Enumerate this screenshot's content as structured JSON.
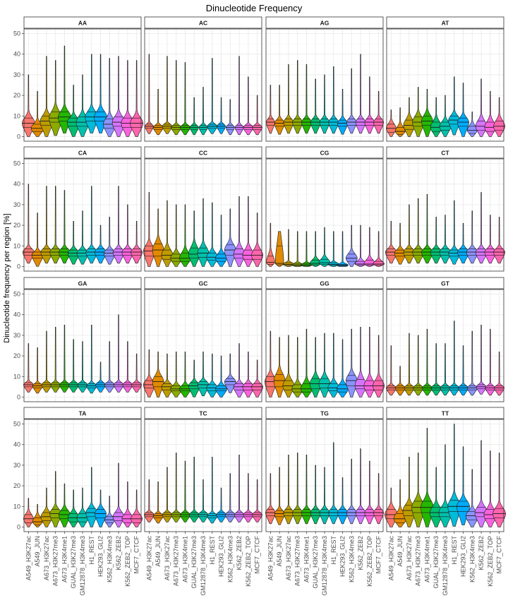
{
  "chart_data": {
    "type": "violin",
    "title": "Dinucleotide Frequency",
    "ylabel": "Dinucleotide frequency per region [%]",
    "xlabel": "",
    "ylim": [
      0,
      50
    ],
    "yticks": [
      0,
      10,
      20,
      30,
      40,
      50
    ],
    "grid": true,
    "legend": "none",
    "categories": [
      "A549_H3K27ac",
      "A549_JUN",
      "A673_H3K27ac",
      "A673_H3K27me3",
      "A673_H3K4me1",
      "GUAL_H3K27me3",
      "GM12878_H3K4me3",
      "H1_REST",
      "HEK293_GLI2",
      "K562_H3K4me3",
      "K562_ZEB2",
      "K562_ZEB2_TOP",
      "MCF7_CTCF"
    ],
    "colors": [
      "#F8766D",
      "#E18A00",
      "#BE9C00",
      "#8CAB00",
      "#24B700",
      "#00BE70",
      "#00C1AB",
      "#00BBDA",
      "#00ACFC",
      "#8B93FF",
      "#D575FE",
      "#F962DD",
      "#FF65AC"
    ],
    "panels": [
      {
        "label": "AA",
        "medians": [
          6.5,
          4,
          7.5,
          9,
          9.5,
          7,
          7,
          9.5,
          9.5,
          6,
          7,
          6.5,
          6.5
        ],
        "q1": [
          4.5,
          2.5,
          5.5,
          7,
          7.5,
          5,
          5,
          7.5,
          7.5,
          4,
          5,
          4.5,
          4.5
        ],
        "q3": [
          9,
          6,
          10,
          12,
          12,
          9,
          9.5,
          12,
          12,
          8.5,
          9.5,
          9,
          9
        ],
        "max": [
          30,
          22,
          39,
          37,
          44,
          25,
          30,
          40,
          40,
          38,
          39,
          37,
          37
        ],
        "halfwidth": [
          9,
          9,
          9,
          9,
          9,
          9,
          9,
          9,
          9,
          9,
          9,
          9,
          9
        ]
      },
      {
        "label": "AC",
        "medians": [
          5,
          4.5,
          5,
          4.5,
          4.5,
          4.5,
          4.5,
          5,
          5,
          4.5,
          4.5,
          4.5,
          4.5
        ],
        "q1": [
          4,
          3.5,
          4,
          3.5,
          3.5,
          3.5,
          3.5,
          4,
          4,
          3.5,
          3.5,
          3.5,
          3.5
        ],
        "q3": [
          6,
          5.5,
          6,
          5.5,
          5.5,
          5.5,
          5.5,
          6,
          6,
          5.5,
          5.5,
          5.5,
          5.5
        ],
        "max": [
          40,
          23,
          39,
          37,
          36,
          19,
          24,
          38,
          19,
          18,
          39,
          29,
          20
        ],
        "halfwidth": [
          6,
          7,
          7,
          7,
          7,
          6,
          6,
          7,
          6,
          6,
          6,
          7,
          7
        ]
      },
      {
        "label": "AG",
        "medians": [
          7,
          6.5,
          7,
          7,
          7,
          7,
          7,
          7,
          6.5,
          7,
          7,
          7,
          7
        ],
        "q1": [
          5.5,
          5,
          5.5,
          5.5,
          5.5,
          5.5,
          5.5,
          5.5,
          5,
          5.5,
          5.5,
          5.5,
          5.5
        ],
        "q3": [
          8.5,
          8,
          8.5,
          8.5,
          8.5,
          8.5,
          8.5,
          8.5,
          8,
          8.5,
          8.5,
          8.5,
          8.5
        ],
        "max": [
          25,
          25,
          35,
          37,
          35,
          28,
          30,
          34,
          23,
          33,
          40,
          29,
          22
        ],
        "halfwidth": [
          6,
          7,
          7,
          7,
          7,
          7,
          7,
          7,
          7,
          7,
          7,
          7,
          7
        ]
      },
      {
        "label": "AT",
        "medians": [
          4,
          2.5,
          5.5,
          7,
          7.5,
          4.5,
          5,
          8,
          7,
          3,
          5,
          4.5,
          5
        ],
        "q1": [
          2,
          1,
          3.5,
          5,
          5.5,
          2.5,
          3,
          6,
          5,
          1.5,
          3,
          2.5,
          3
        ],
        "q3": [
          6,
          4.5,
          8,
          9.5,
          10,
          7,
          7,
          10,
          9,
          5,
          7.5,
          7,
          7.5
        ],
        "max": [
          13,
          14,
          19,
          24,
          23,
          19,
          20,
          29,
          26,
          12,
          28,
          22,
          19
        ],
        "halfwidth": [
          7,
          7,
          8,
          8,
          8,
          8,
          8,
          8,
          8,
          7,
          8,
          8,
          8
        ]
      },
      {
        "label": "CA",
        "medians": [
          7,
          5.5,
          7,
          7,
          7,
          6.5,
          6.5,
          7,
          7,
          6.5,
          7,
          7,
          7
        ],
        "q1": [
          5.5,
          4,
          5.5,
          5.5,
          5.5,
          5,
          5,
          5.5,
          5.5,
          5,
          5.5,
          5.5,
          5.5
        ],
        "q3": [
          8.5,
          7,
          8.5,
          8.5,
          8.5,
          8,
          8,
          8.5,
          8.5,
          8,
          8.5,
          8.5,
          8.5
        ],
        "max": [
          40,
          26,
          39,
          39,
          37,
          22,
          27,
          39,
          20,
          24,
          39,
          30,
          22
        ],
        "halfwidth": [
          8,
          8,
          8,
          8,
          8,
          8,
          8,
          8,
          8,
          8,
          8,
          8,
          8
        ]
      },
      {
        "label": "CC",
        "medians": [
          7.5,
          8,
          5.5,
          4,
          4,
          6,
          6.5,
          4.5,
          4,
          8,
          6,
          5.5,
          5.5
        ],
        "q1": [
          5,
          5,
          3.5,
          2.5,
          2.5,
          4,
          4.5,
          3,
          2.5,
          5.5,
          4,
          3.5,
          3.5
        ],
        "q3": [
          10,
          11,
          8,
          6,
          6.5,
          9,
          9,
          6.5,
          6,
          10.5,
          8.5,
          8,
          8
        ],
        "max": [
          36,
          28,
          32,
          30,
          30,
          27,
          33,
          31,
          25,
          28,
          34,
          34,
          26
        ],
        "halfwidth": [
          8,
          8,
          8,
          8,
          8,
          8,
          8,
          8,
          8,
          8,
          8,
          8,
          8
        ]
      },
      {
        "label": "CG",
        "medians": [
          2,
          1.5,
          1,
          0.8,
          0.8,
          1.5,
          1.8,
          1,
          0.6,
          4,
          1.2,
          1.2,
          1.2
        ],
        "q1": [
          1,
          0.8,
          0.5,
          0.4,
          0.4,
          0.8,
          0.9,
          0.5,
          0.3,
          2.5,
          0.6,
          0.6,
          0.6
        ],
        "q3": [
          5,
          10,
          1.8,
          1.5,
          1.5,
          3,
          3.5,
          1.8,
          1,
          6,
          2.5,
          3,
          2.5
        ],
        "max": [
          21,
          17,
          18,
          17,
          17,
          17,
          19,
          17,
          17,
          20,
          20,
          19,
          17
        ],
        "halfwidth": [
          6,
          6,
          8,
          8,
          8,
          8,
          8,
          8,
          8,
          8,
          8,
          8,
          8
        ]
      },
      {
        "label": "CT",
        "medians": [
          7,
          6.5,
          7,
          7,
          7,
          7,
          7,
          6.5,
          7,
          7,
          7,
          7,
          7
        ],
        "q1": [
          5.5,
          5,
          5.5,
          5.5,
          5.5,
          5.5,
          5.5,
          5,
          5.5,
          5.5,
          5.5,
          5.5,
          5.5
        ],
        "q3": [
          8.5,
          8,
          8.5,
          8.5,
          8.5,
          8.5,
          8.5,
          8,
          8.5,
          8.5,
          8.5,
          8.5,
          8.5
        ],
        "max": [
          22,
          21,
          30,
          33,
          35,
          24,
          25,
          32,
          21,
          27,
          36,
          25,
          24
        ],
        "halfwidth": [
          8,
          8,
          8,
          8,
          8,
          8,
          8,
          8,
          8,
          8,
          8,
          8,
          8
        ]
      },
      {
        "label": "GA",
        "medians": [
          6,
          5.5,
          6,
          6,
          6,
          6,
          6,
          5.5,
          6,
          6,
          6,
          6,
          6
        ],
        "q1": [
          5,
          4.5,
          5,
          5,
          5,
          5,
          5,
          4.5,
          5,
          5,
          5,
          5,
          5
        ],
        "q3": [
          7,
          6.5,
          7,
          7,
          7,
          7,
          7,
          6.5,
          7,
          7,
          7,
          7,
          7
        ],
        "max": [
          26,
          24,
          32,
          34,
          35,
          28,
          27,
          35,
          17,
          27,
          40,
          27,
          21
        ],
        "halfwidth": [
          7,
          7,
          7,
          7,
          7,
          7,
          7,
          7,
          7,
          7,
          7,
          7,
          7
        ]
      },
      {
        "label": "GC",
        "medians": [
          6,
          7.5,
          5,
          4,
          4,
          5.5,
          6,
          4.5,
          4,
          7.5,
          5,
          5,
          5
        ],
        "q1": [
          4.5,
          5,
          3.5,
          3,
          3,
          4,
          4.5,
          3,
          3,
          6,
          3.5,
          3.5,
          3.5
        ],
        "q3": [
          8,
          10,
          6.5,
          5.5,
          5.5,
          7,
          7.5,
          6,
          5.5,
          9,
          6.5,
          6.5,
          6.5
        ],
        "max": [
          23,
          22,
          21,
          22,
          22,
          18,
          22,
          21,
          20,
          21,
          26,
          22,
          18
        ],
        "halfwidth": [
          8,
          8,
          8,
          8,
          8,
          8,
          8,
          8,
          8,
          8,
          8,
          8,
          8
        ]
      },
      {
        "label": "GG",
        "medians": [
          7.5,
          8,
          5.5,
          4,
          4,
          6.5,
          6.5,
          4.5,
          4,
          8,
          5.5,
          5.5,
          5.5
        ],
        "q1": [
          5,
          5,
          3.5,
          2.5,
          2.5,
          4,
          4.5,
          3,
          2.5,
          5.5,
          4,
          3.5,
          3.5
        ],
        "q3": [
          10,
          11,
          8,
          6,
          6.5,
          9,
          9,
          6.5,
          6,
          10.5,
          8.5,
          8,
          8
        ],
        "max": [
          32,
          29,
          30,
          29,
          33,
          29,
          31,
          31,
          28,
          33,
          34,
          34,
          30
        ],
        "halfwidth": [
          8,
          8,
          8,
          8,
          8,
          8,
          8,
          8,
          8,
          8,
          8,
          8,
          8
        ]
      },
      {
        "label": "GT",
        "medians": [
          4.5,
          4.5,
          4.5,
          4.5,
          4.5,
          4.5,
          4.5,
          4.5,
          4.5,
          4.5,
          5,
          4.5,
          4.5
        ],
        "q1": [
          3.5,
          3.5,
          3.5,
          3.5,
          3.5,
          3.5,
          3.5,
          3.5,
          3.5,
          3.5,
          4,
          3.5,
          3.5
        ],
        "q3": [
          5.5,
          5.5,
          5.5,
          5.5,
          5.5,
          5.5,
          5.5,
          5.5,
          5.5,
          5.5,
          6,
          5.5,
          5.5
        ],
        "max": [
          25,
          15,
          31,
          30,
          33,
          26,
          26,
          37,
          25,
          32,
          35,
          33,
          22
        ],
        "halfwidth": [
          7,
          7,
          7,
          7,
          7,
          7,
          7,
          7,
          7,
          7,
          7,
          7,
          7
        ]
      },
      {
        "label": "TA",
        "medians": [
          4,
          2.5,
          5,
          6.5,
          6,
          4.5,
          4.5,
          7,
          6.5,
          3.5,
          5,
          4,
          4
        ],
        "q1": [
          2,
          1,
          3,
          4.5,
          4,
          2.5,
          2.5,
          5,
          4.5,
          2,
          3,
          2,
          2
        ],
        "q3": [
          6,
          4.5,
          7,
          8.5,
          8,
          6.5,
          6.5,
          9,
          8.5,
          5,
          7,
          6,
          6
        ],
        "max": [
          14,
          11,
          19,
          27,
          21,
          18,
          19,
          29,
          18,
          15,
          31,
          22,
          18
        ],
        "halfwidth": [
          7,
          7,
          8,
          8,
          8,
          8,
          8,
          8,
          8,
          7,
          8,
          8,
          8
        ]
      },
      {
        "label": "TC",
        "medians": [
          6,
          5.5,
          6,
          6,
          6,
          6,
          6,
          5.5,
          6,
          6,
          6,
          6,
          6
        ],
        "q1": [
          5,
          4.5,
          5,
          5,
          5,
          5,
          5,
          4.5,
          5,
          5,
          5,
          5,
          5
        ],
        "q3": [
          7,
          6.5,
          7,
          7,
          7,
          7,
          7,
          6.5,
          7,
          7,
          7,
          7,
          7
        ],
        "max": [
          23,
          22,
          29,
          36,
          32,
          34,
          23,
          34,
          19,
          26,
          35,
          26,
          23
        ],
        "halfwidth": [
          7,
          7,
          7,
          7,
          7,
          7,
          7,
          7,
          7,
          7,
          7,
          7,
          7
        ]
      },
      {
        "label": "TG",
        "medians": [
          7,
          6.5,
          7,
          7,
          7,
          7,
          7,
          7,
          7,
          7,
          7,
          7,
          7
        ],
        "q1": [
          5.5,
          5,
          5.5,
          5.5,
          5.5,
          5.5,
          5.5,
          5.5,
          5.5,
          5.5,
          5.5,
          5.5,
          5.5
        ],
        "q3": [
          8.5,
          8,
          8.5,
          8.5,
          8.5,
          8.5,
          8.5,
          8.5,
          8.5,
          8.5,
          8.5,
          8.5,
          8.5
        ],
        "max": [
          26,
          29,
          35,
          36,
          35,
          30,
          29,
          41,
          24,
          33,
          38,
          32,
          26
        ],
        "halfwidth": [
          7,
          7,
          7,
          7,
          7,
          7,
          7,
          7,
          7,
          7,
          7,
          7,
          7
        ]
      },
      {
        "label": "TT",
        "medians": [
          6,
          4,
          8,
          9.5,
          9.5,
          7,
          7,
          10,
          10,
          5.5,
          7,
          6,
          6.5
        ],
        "q1": [
          4,
          2,
          5.5,
          7,
          7,
          5,
          5,
          7.5,
          7.5,
          3.5,
          5,
          4,
          4.5
        ],
        "q3": [
          8.5,
          6.5,
          10.5,
          12.5,
          12.5,
          9.5,
          9.5,
          13,
          12.5,
          7.5,
          9.5,
          8.5,
          9
        ],
        "max": [
          19,
          23,
          34,
          36,
          48,
          29,
          40,
          50,
          39,
          28,
          42,
          37,
          36
        ],
        "halfwidth": [
          9,
          9,
          9,
          9,
          9,
          9,
          9,
          9,
          9,
          9,
          9,
          9,
          9
        ]
      }
    ]
  }
}
